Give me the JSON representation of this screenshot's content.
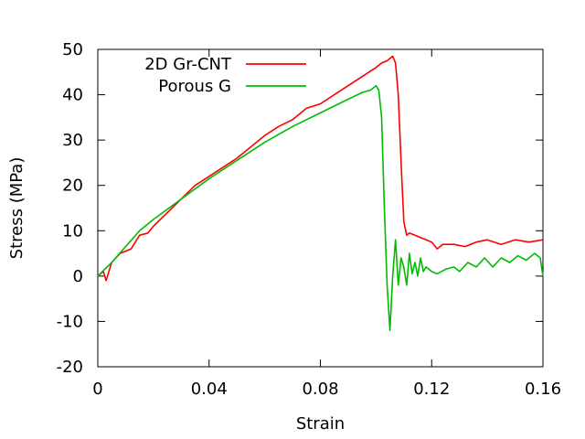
{
  "chart_data": {
    "type": "line",
    "title": "",
    "xlabel": "Strain",
    "ylabel": "Stress (MPa)",
    "xlim": [
      0,
      0.16
    ],
    "ylim": [
      -20,
      50
    ],
    "xticks": [
      0,
      0.04,
      0.08,
      0.12,
      0.16
    ],
    "xtick_labels": [
      "0",
      "0.04",
      "0.08",
      "0.12",
      "0.16"
    ],
    "yticks": [
      -20,
      -10,
      0,
      10,
      20,
      30,
      40,
      50
    ],
    "ytick_labels": [
      "-20",
      "-10",
      "0",
      "10",
      "20",
      "30",
      "40",
      "50"
    ],
    "grid": false,
    "legend_position": "top-left",
    "series": [
      {
        "name": "2D Gr-CNT",
        "color": "#ff0000",
        "x": [
          0,
          0.002,
          0.003,
          0.005,
          0.008,
          0.01,
          0.012,
          0.015,
          0.018,
          0.02,
          0.025,
          0.03,
          0.035,
          0.04,
          0.045,
          0.05,
          0.055,
          0.06,
          0.065,
          0.07,
          0.075,
          0.08,
          0.085,
          0.09,
          0.095,
          0.1,
          0.102,
          0.104,
          0.105,
          0.106,
          0.107,
          0.108,
          0.109,
          0.11,
          0.111,
          0.112,
          0.114,
          0.116,
          0.118,
          0.12,
          0.122,
          0.124,
          0.128,
          0.132,
          0.136,
          0.14,
          0.145,
          0.15,
          0.155,
          0.16
        ],
        "y": [
          0,
          1,
          -1,
          3,
          5,
          5.5,
          6,
          9,
          9.5,
          11,
          14,
          17,
          20,
          22,
          24,
          26,
          28.5,
          31,
          33,
          34.5,
          37,
          38,
          40,
          42,
          44,
          46,
          47,
          47.5,
          48,
          48.5,
          47,
          40,
          25,
          12,
          9,
          9.5,
          9,
          8.5,
          8,
          7.5,
          6,
          7,
          7,
          6.5,
          7.5,
          8,
          7,
          8,
          7.5,
          8
        ]
      },
      {
        "name": "Porous G",
        "color": "#00bb00",
        "x": [
          0,
          0.005,
          0.01,
          0.015,
          0.02,
          0.03,
          0.04,
          0.05,
          0.06,
          0.07,
          0.08,
          0.09,
          0.095,
          0.098,
          0.1,
          0.101,
          0.102,
          0.103,
          0.104,
          0.105,
          0.106,
          0.107,
          0.108,
          0.109,
          0.11,
          0.111,
          0.112,
          0.113,
          0.114,
          0.115,
          0.116,
          0.117,
          0.118,
          0.12,
          0.122,
          0.125,
          0.128,
          0.13,
          0.133,
          0.136,
          0.139,
          0.142,
          0.145,
          0.148,
          0.151,
          0.154,
          0.157,
          0.159,
          0.16
        ],
        "y": [
          0,
          3,
          6.5,
          10,
          12.5,
          17,
          21.5,
          25.5,
          29.5,
          33,
          36,
          39,
          40.5,
          41,
          42,
          41,
          35,
          15,
          -2,
          -12,
          0,
          8,
          -2,
          4,
          2,
          -2,
          5,
          0.5,
          3,
          0,
          4,
          1,
          2,
          1,
          0.5,
          1.5,
          2,
          1,
          3,
          2,
          4,
          2,
          4,
          3,
          4.5,
          3.5,
          5,
          4,
          0
        ]
      }
    ]
  }
}
